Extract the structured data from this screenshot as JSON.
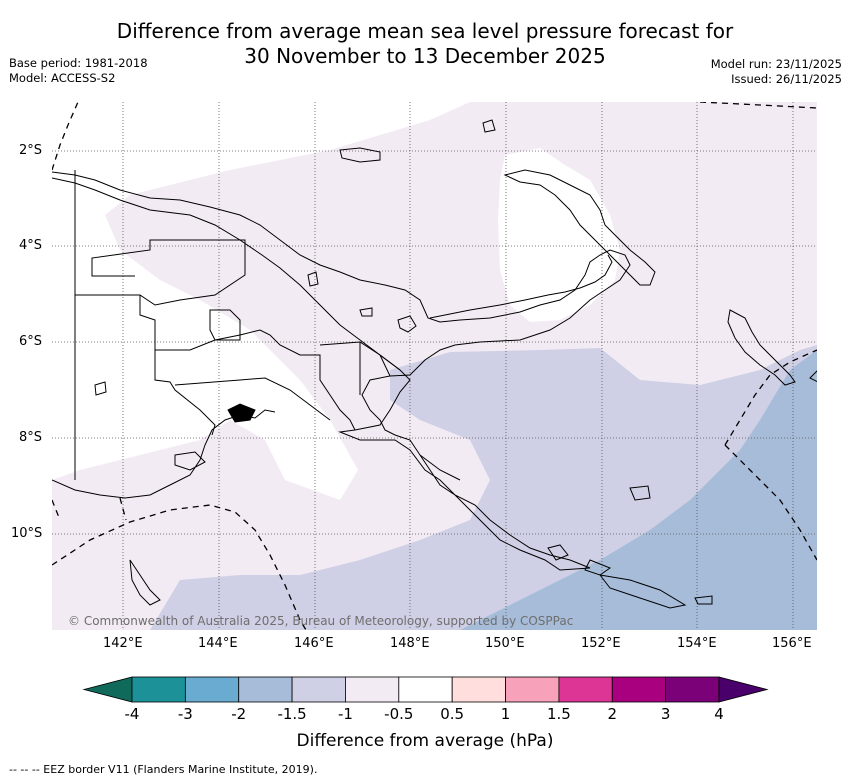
{
  "title_line1": "Difference from average mean sea level pressure forecast for",
  "title_line2": "30 November to 13 December 2025",
  "base_period": "Base period: 1981-2018",
  "model": "Model: ACCESS-S2",
  "model_run": "Model run: 23/11/2025",
  "issued": "Issued: 26/11/2025",
  "copyright": "© Commonwealth of Australia 2025, Bureau of Meteorology, supported by COSPPac",
  "lat_labels": [
    "2°S",
    "4°S",
    "6°S",
    "8°S",
    "10°S"
  ],
  "lon_labels": [
    "142°E",
    "144°E",
    "146°E",
    "148°E",
    "150°E",
    "152°E",
    "154°E",
    "156°E"
  ],
  "colorbar": {
    "title": "Difference from average (hPa)",
    "ticks": [
      "-4",
      "-3",
      "-2",
      "-1.5",
      "-1",
      "-0.5",
      "0.5",
      "1",
      "1.5",
      "2",
      "3",
      "4"
    ],
    "colors": [
      "#0f6a5c",
      "#1c9198",
      "#6aabd2",
      "#a7bcd9",
      "#cfd0e5",
      "#f3ebf4",
      "#ffffff",
      "#ffdedd",
      "#f7a1ba",
      "#dd3596",
      "#a8007f",
      "#7a0177",
      "#49006a"
    ]
  },
  "legend_note": "--  --  -- EEZ border V11 (Flanders Marine Institute, 2019)."
}
